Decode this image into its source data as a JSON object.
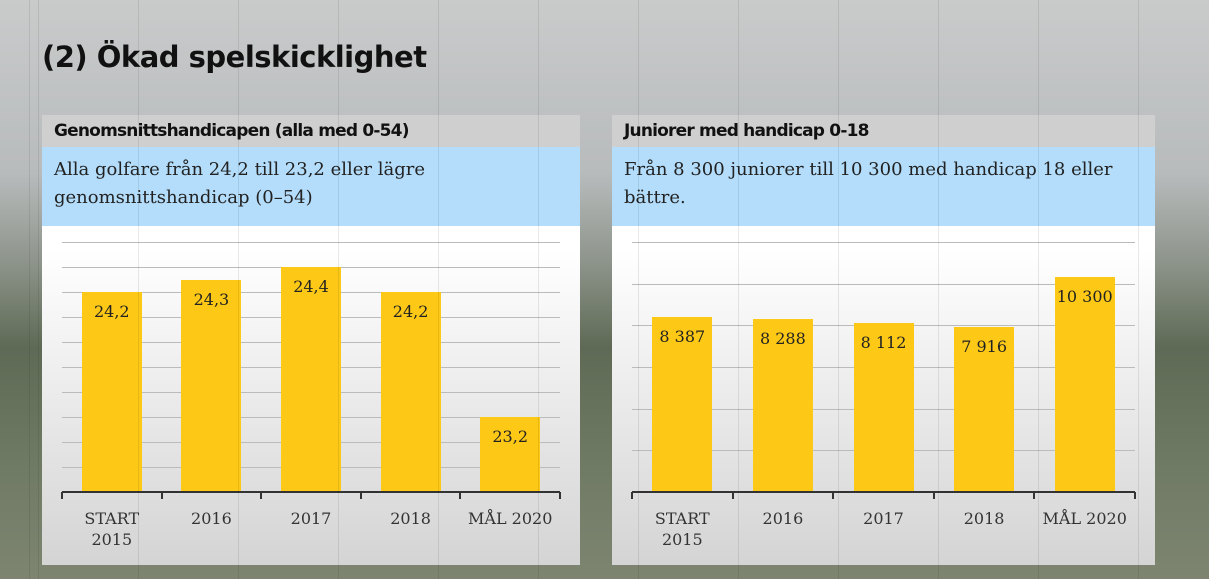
{
  "title": "(2) Ökad spelskicklighet",
  "chart_data": [
    {
      "type": "bar",
      "title": "Genomsnittshandicapen (alla med 0-54)",
      "subtitle": "Alla golfare från 24,2 till 23,2 eller lägre genomsnittshandicap (0–54)",
      "categories": [
        "START 2015",
        "2016",
        "2017",
        "2018",
        "MÅL 2020"
      ],
      "values": [
        24.2,
        24.3,
        24.4,
        24.2,
        23.2
      ],
      "value_labels": [
        "24,2",
        "24,3",
        "24,4",
        "24,2",
        "23,2"
      ],
      "color": "#fdc916",
      "ylim": [
        22.6,
        24.6
      ],
      "yticks": [
        22.6,
        22.8,
        23.0,
        23.2,
        23.4,
        23.6,
        23.8,
        24.0,
        24.2,
        24.4,
        24.6
      ],
      "grid": true
    },
    {
      "type": "bar",
      "title": "Juniorer med handicap 0-18",
      "subtitle": "Från 8 300 juniorer till 10 300 med handicap 18 eller bättre.",
      "categories": [
        "START 2015",
        "2016",
        "2017",
        "2018",
        "MÅL 2020"
      ],
      "values": [
        8387,
        8288,
        8112,
        7916,
        10300
      ],
      "value_labels": [
        "8 387",
        "8 288",
        "8 112",
        "7 916",
        "10 300"
      ],
      "color": "#fdc916",
      "ylim": [
        0,
        12000
      ],
      "yticks": [
        0,
        2000,
        4000,
        6000,
        8000,
        10000,
        12000
      ],
      "grid": true
    }
  ]
}
